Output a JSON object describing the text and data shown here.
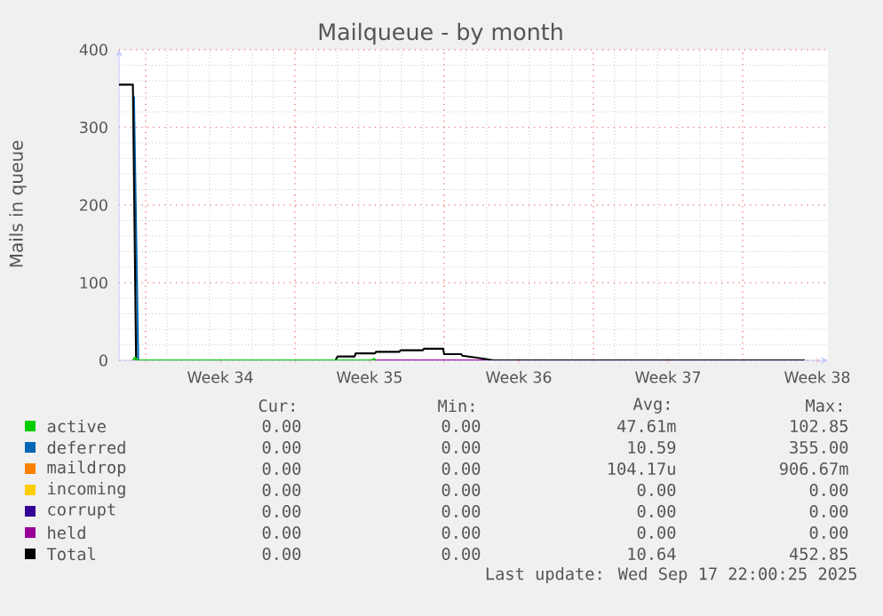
{
  "chart_data": {
    "type": "line",
    "title": "Mailqueue - by month",
    "ylabel": "Mails in queue",
    "xlim": [
      "2025-08-16T18:00",
      "2025-09-19T00:00"
    ],
    "ylim": [
      0,
      400
    ],
    "xticks": [
      {
        "value": "2025-08-18",
        "label": null
      },
      {
        "value": "2025-08-25",
        "label": null
      },
      {
        "value": "2025-09-01",
        "label": null
      },
      {
        "value": "2025-09-08",
        "label": null
      },
      {
        "value": "2025-09-15",
        "label": null
      },
      {
        "value": "2025-08-21T12:00",
        "label": "Week 34"
      },
      {
        "value": "2025-08-28T12:00",
        "label": "Week 35"
      },
      {
        "value": "2025-09-04T12:00",
        "label": "Week 36"
      },
      {
        "value": "2025-09-11T12:00",
        "label": "Week 37"
      },
      {
        "value": "2025-09-18T12:00",
        "label": "Week 38"
      }
    ],
    "yticks": [
      0,
      100,
      200,
      300,
      400
    ],
    "grid": true,
    "legend": "bottom",
    "series": [
      {
        "name": "active",
        "color": "#00cc00",
        "x": [
          "2025-08-17T09:36",
          "2025-08-17T12:00",
          "2025-08-17T14:24",
          "2025-08-28T14:24",
          "2025-08-28T16:48",
          "2025-08-28T19:12"
        ],
        "values": [
          0,
          4,
          0,
          0,
          2,
          0
        ]
      },
      {
        "name": "deferred",
        "color": "#0066b3",
        "x": [
          "2025-08-17T10:48",
          "2025-08-17T15:36"
        ],
        "values": [
          340,
          0
        ]
      },
      {
        "name": "maildrop",
        "color": "#ff8000"
      },
      {
        "name": "incoming",
        "color": "#ffcc00"
      },
      {
        "name": "corrupt",
        "color": "#330099"
      },
      {
        "name": "held",
        "color": "#990099",
        "x": [
          "2025-08-26T21:36",
          "2025-09-03T07:12"
        ],
        "values": [
          0,
          0
        ]
      },
      {
        "name": "Total",
        "color": "#000000",
        "x": [
          "2025-08-16T18:00",
          "2025-08-17T09:36",
          "2025-08-17T13:12",
          "2025-08-26T21:36",
          "2025-08-27T00:00",
          "2025-08-27T19:12",
          "2025-08-27T20:24",
          "2025-08-28T18:00",
          "2025-08-28T19:12",
          "2025-08-29T21:36",
          "2025-08-29T22:48",
          "2025-08-31T00:00",
          "2025-08-31T01:12",
          "2025-08-31T22:48",
          "2025-09-01T00:00",
          "2025-09-01T19:12",
          "2025-09-01T20:24",
          "2025-09-02T21:36",
          "2025-09-03T07:12",
          "2025-09-17T22:00"
        ],
        "values": [
          355,
          355,
          0,
          0,
          5,
          5,
          9,
          9,
          11,
          11,
          13,
          13,
          15,
          15,
          8,
          8,
          6,
          2,
          0,
          0
        ]
      }
    ],
    "annotations": [
      "Cur:",
      "Min:",
      "Avg:",
      "Max:",
      "0.00",
      "0.00",
      "47.61m",
      "102.85",
      "0.00",
      "0.00",
      "10.59",
      "355.00",
      "0.00",
      "0.00",
      "104.17u",
      "906.67m",
      "0.00",
      "0.00",
      "0.00",
      "0.00",
      "0.00",
      "0.00",
      "0.00",
      "0.00",
      "0.00",
      "0.00",
      "0.00",
      "0.00",
      "0.00",
      "0.00",
      "10.64",
      "452.85",
      "Last update: Wed Sep 17 22:00:25 2025"
    ]
  }
}
